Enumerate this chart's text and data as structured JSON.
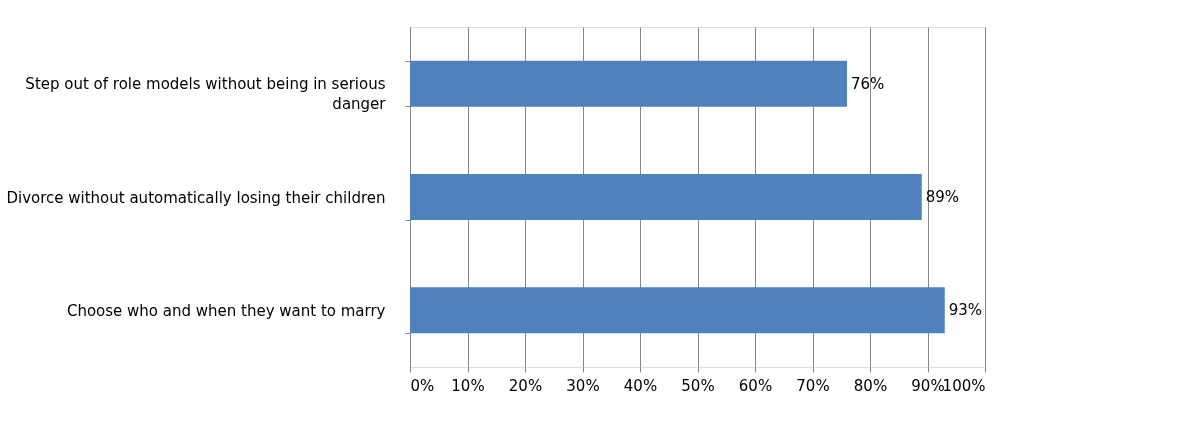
{
  "chart_data": {
    "type": "bar",
    "orientation": "horizontal",
    "categories": [
      "Step out of role models without being in serious danger",
      "Divorce without automatically losing their children",
      "Choose who and when they want to marry"
    ],
    "values": [
      76,
      89,
      93
    ],
    "color": "#4f81bd",
    "value_labels": [
      "76%",
      "89%",
      "93%"
    ],
    "xlim": [
      0,
      100
    ],
    "xticks": [
      {
        "value": 0,
        "label": "0%"
      },
      {
        "value": 10,
        "label": "10%"
      },
      {
        "value": 20,
        "label": "20%"
      },
      {
        "value": 30,
        "label": "30%"
      },
      {
        "value": 40,
        "label": "40%"
      },
      {
        "value": 50,
        "label": "50%"
      },
      {
        "value": 60,
        "label": "60%"
      },
      {
        "value": 70,
        "label": "70%"
      },
      {
        "value": 80,
        "label": "80%"
      },
      {
        "value": 90,
        "label": "90%"
      },
      {
        "value": 100,
        "label": "100%"
      }
    ],
    "grid": "x"
  }
}
